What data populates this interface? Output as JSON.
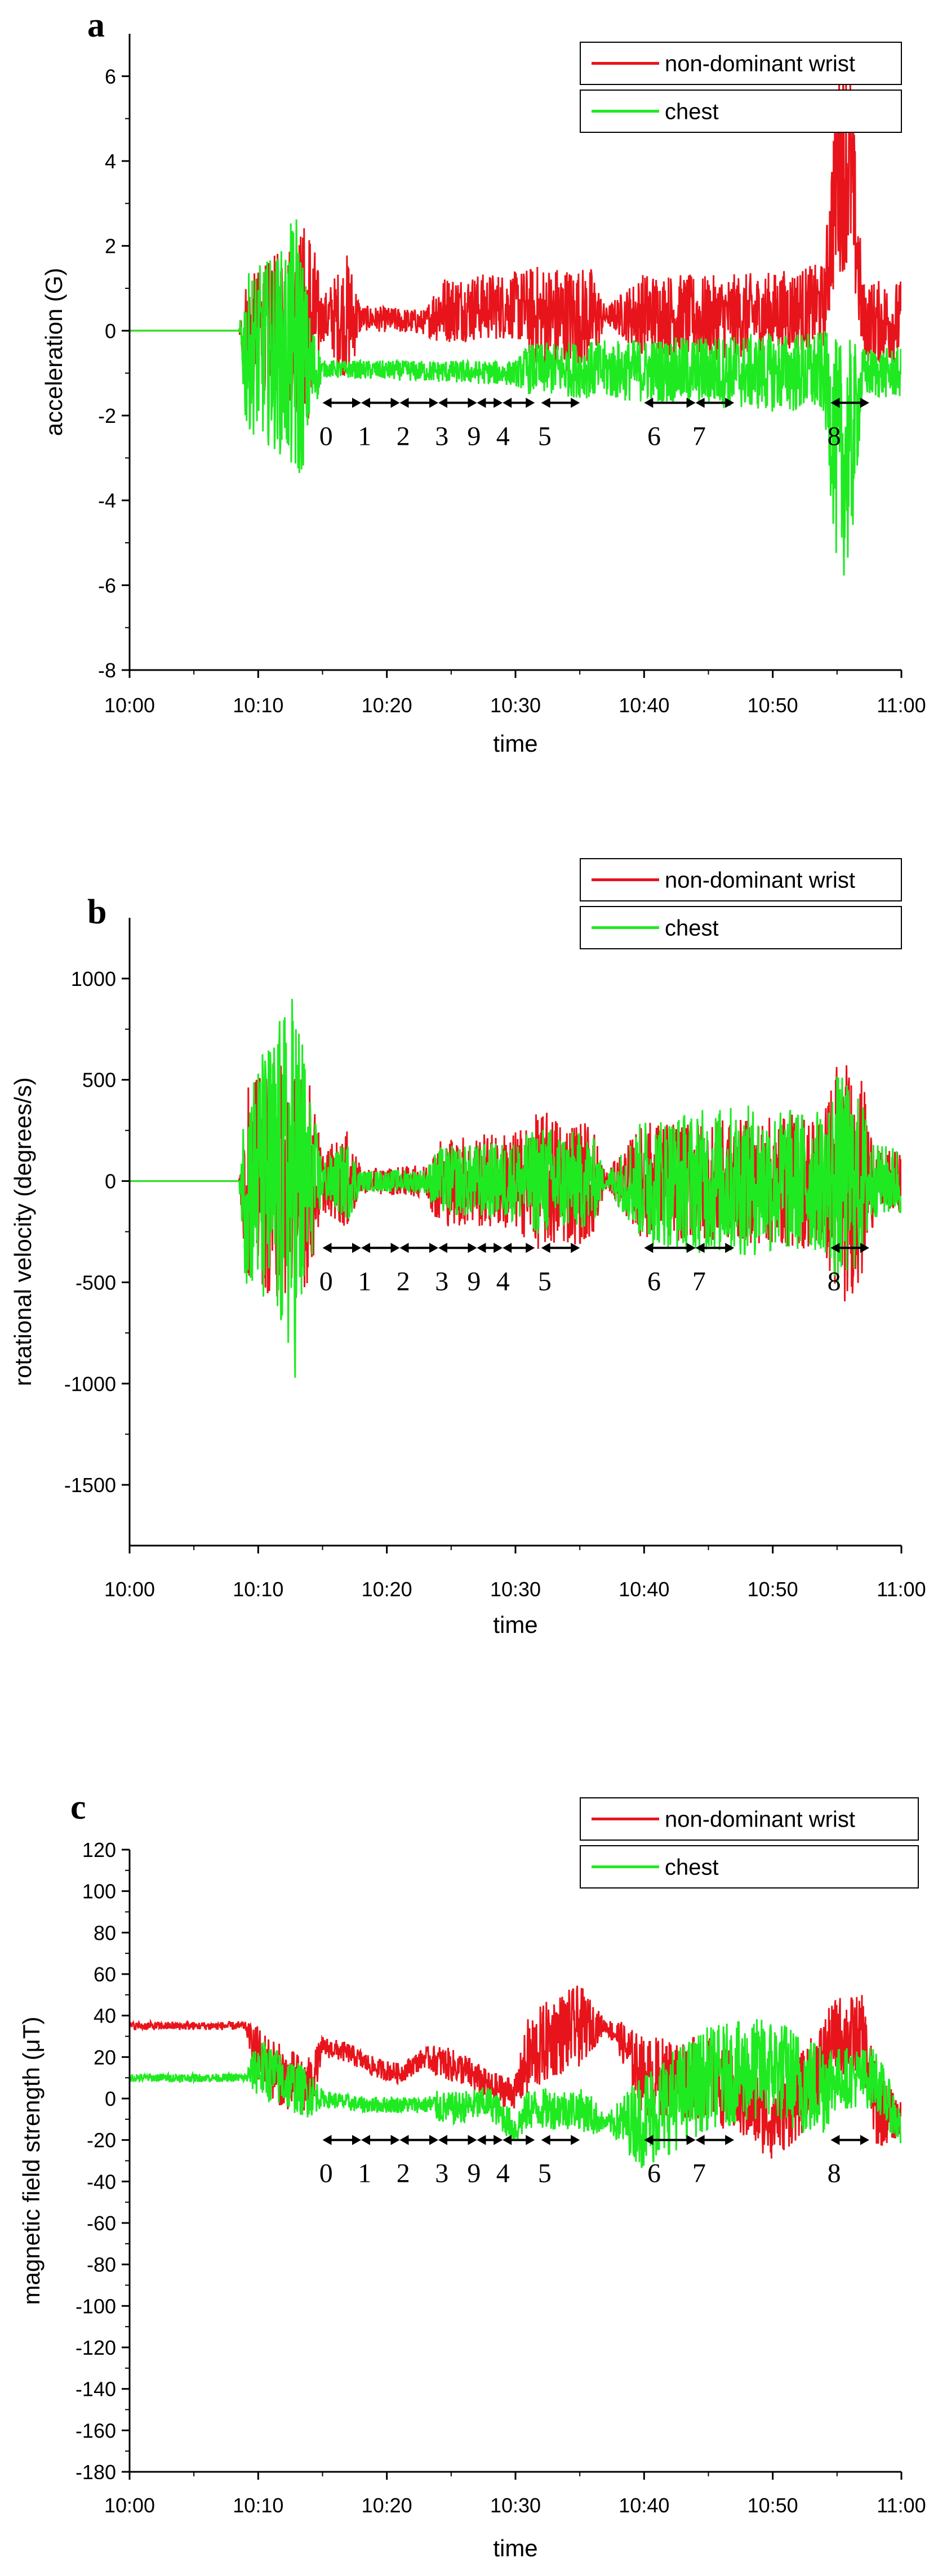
{
  "figure_title": "",
  "colors": {
    "wrist": "#e8141b",
    "chest": "#1fea21",
    "axis": "#000000",
    "arrow": "#000000"
  },
  "chart_data": [
    {
      "type": "line",
      "panel_label": "a",
      "ylabel": "acceleration (G)",
      "xlabel": "time",
      "x_ticks": [
        "10:00",
        "10:10",
        "10:20",
        "10:30",
        "10:40",
        "10:50",
        "11:00"
      ],
      "x_range_minutes": [
        0,
        60
      ],
      "y_ticks": [
        6,
        4,
        2,
        0,
        -2,
        -4,
        -6,
        -8
      ],
      "ylim": [
        -8,
        7
      ],
      "legend": {
        "placement": "top-right",
        "entries": [
          "non-dominant wrist",
          "chest"
        ]
      },
      "series": [
        {
          "name": "non-dominant wrist",
          "color": "#e8141b",
          "baseline": [
            [
              0,
              0
            ],
            [
              8.5,
              0
            ],
            [
              9,
              0
            ],
            [
              15,
              0.3
            ],
            [
              17,
              0.3
            ],
            [
              18,
              0.3
            ],
            [
              23,
              0.2
            ],
            [
              24,
              0.5
            ],
            [
              30,
              0.6
            ],
            [
              32,
              0.3
            ],
            [
              35,
              0.3
            ],
            [
              40,
              0.4
            ],
            [
              45,
              0.3
            ],
            [
              50,
              0.4
            ],
            [
              54,
              0.6
            ],
            [
              55,
              3.8
            ],
            [
              56,
              4
            ],
            [
              57,
              0.2
            ],
            [
              60,
              0.2
            ]
          ],
          "spread": [
            [
              0,
              0
            ],
            [
              8.5,
              0
            ],
            [
              9,
              1.2
            ],
            [
              11,
              1.6
            ],
            [
              13,
              2.2
            ],
            [
              14,
              2.5
            ],
            [
              15,
              0.5
            ],
            [
              17,
              1.6
            ],
            [
              18,
              0.3
            ],
            [
              23,
              0.3
            ],
            [
              24,
              0.8
            ],
            [
              30,
              0.8
            ],
            [
              32,
              1.3
            ],
            [
              36,
              1.2
            ],
            [
              37,
              0.2
            ],
            [
              40,
              1
            ],
            [
              54,
              1
            ],
            [
              55,
              2.5
            ],
            [
              56,
              2.5
            ],
            [
              57,
              1
            ],
            [
              60,
              1
            ]
          ]
        },
        {
          "name": "chest",
          "color": "#1fea21",
          "baseline": [
            [
              0,
              0
            ],
            [
              8.5,
              0
            ],
            [
              9,
              -0.5
            ],
            [
              13,
              -0.5
            ],
            [
              14,
              -1
            ],
            [
              15,
              -0.9
            ],
            [
              30,
              -1
            ],
            [
              31,
              -0.9
            ],
            [
              54,
              -1
            ],
            [
              55,
              -3
            ],
            [
              56,
              -3
            ],
            [
              57,
              -1
            ],
            [
              60,
              -1
            ]
          ],
          "spread": [
            [
              0,
              0
            ],
            [
              8.5,
              0
            ],
            [
              9,
              1.8
            ],
            [
              12,
              2.5
            ],
            [
              13,
              3.5
            ],
            [
              14,
              1.5
            ],
            [
              15,
              0.2
            ],
            [
              30,
              0.3
            ],
            [
              31,
              0.6
            ],
            [
              54,
              1
            ],
            [
              55,
              2.8
            ],
            [
              56,
              2.8
            ],
            [
              57,
              0.6
            ],
            [
              60,
              0.6
            ]
          ]
        }
      ],
      "activity_markers": [
        {
          "label": "0",
          "start": 15,
          "end": 18
        },
        {
          "label": "1",
          "start": 18,
          "end": 21
        },
        {
          "label": "2",
          "start": 21,
          "end": 24
        },
        {
          "label": "3",
          "start": 24,
          "end": 27
        },
        {
          "label": "9",
          "start": 27,
          "end": 29
        },
        {
          "label": "4",
          "start": 29,
          "end": 31.5
        },
        {
          "label": "5",
          "start": 32,
          "end": 35
        },
        {
          "label": "6",
          "start": 40,
          "end": 44
        },
        {
          "label": "7",
          "start": 44,
          "end": 47
        },
        {
          "label": "8",
          "start": 54.5,
          "end": 57.5
        }
      ],
      "marker_y": -1.7
    },
    {
      "type": "line",
      "panel_label": "b",
      "ylabel": "rotational velocity (degrees/s)",
      "xlabel": "time",
      "x_ticks": [
        "10:00",
        "10:10",
        "10:20",
        "10:30",
        "10:40",
        "10:50",
        "11:00"
      ],
      "x_range_minutes": [
        0,
        60
      ],
      "y_ticks": [
        1000,
        500,
        0,
        -500,
        -1000,
        -1500
      ],
      "ylim": [
        -1800,
        1300
      ],
      "legend": {
        "placement": "top-right",
        "entries": [
          "non-dominant wrist",
          "chest"
        ]
      },
      "series": [
        {
          "name": "non-dominant wrist",
          "color": "#e8141b",
          "baseline": [
            [
              0,
              0
            ],
            [
              60,
              0
            ]
          ],
          "spread": [
            [
              0,
              0
            ],
            [
              8.5,
              0
            ],
            [
              9,
              450
            ],
            [
              12,
              650
            ],
            [
              14,
              500
            ],
            [
              15,
              150
            ],
            [
              17,
              250
            ],
            [
              18,
              60
            ],
            [
              23,
              80
            ],
            [
              24,
              220
            ],
            [
              30,
              250
            ],
            [
              32,
              350
            ],
            [
              36,
              300
            ],
            [
              37,
              40
            ],
            [
              40,
              300
            ],
            [
              47,
              300
            ],
            [
              54,
              350
            ],
            [
              55,
              650
            ],
            [
              57,
              500
            ],
            [
              58,
              150
            ],
            [
              60,
              150
            ]
          ]
        },
        {
          "name": "chest",
          "color": "#1fea21",
          "baseline": [
            [
              0,
              0
            ],
            [
              60,
              0
            ]
          ],
          "spread": [
            [
              0,
              0
            ],
            [
              8.5,
              0
            ],
            [
              9,
              500
            ],
            [
              12,
              850
            ],
            [
              13,
              1000
            ],
            [
              14,
              450
            ],
            [
              15,
              100
            ],
            [
              17,
              200
            ],
            [
              18,
              50
            ],
            [
              23,
              60
            ],
            [
              24,
              170
            ],
            [
              30,
              200
            ],
            [
              32,
              280
            ],
            [
              36,
              230
            ],
            [
              37,
              30
            ],
            [
              40,
              320
            ],
            [
              47,
              380
            ],
            [
              54,
              350
            ],
            [
              55,
              550
            ],
            [
              57,
              400
            ],
            [
              58,
              180
            ],
            [
              60,
              180
            ]
          ]
        }
      ],
      "activity_markers": [
        {
          "label": "0",
          "start": 15,
          "end": 18
        },
        {
          "label": "1",
          "start": 18,
          "end": 21
        },
        {
          "label": "2",
          "start": 21,
          "end": 24
        },
        {
          "label": "3",
          "start": 24,
          "end": 27
        },
        {
          "label": "9",
          "start": 27,
          "end": 29
        },
        {
          "label": "4",
          "start": 29,
          "end": 31.5
        },
        {
          "label": "5",
          "start": 32,
          "end": 35
        },
        {
          "label": "6",
          "start": 40,
          "end": 44
        },
        {
          "label": "7",
          "start": 44,
          "end": 47
        },
        {
          "label": "8",
          "start": 54.5,
          "end": 57.5
        }
      ],
      "marker_y": -330
    },
    {
      "type": "line",
      "panel_label": "c",
      "ylabel": "magnetic field strength (μT)",
      "xlabel": "time",
      "x_ticks": [
        "10:00",
        "10:10",
        "10:20",
        "10:30",
        "10:40",
        "10:50",
        "11:00"
      ],
      "x_range_minutes": [
        0,
        60
      ],
      "y_ticks": [
        120,
        100,
        80,
        60,
        40,
        20,
        0,
        -20,
        -40,
        -60,
        -80,
        -100,
        -120,
        -140,
        -160,
        -180
      ],
      "ylim": [
        -180,
        120
      ],
      "legend": {
        "placement": "top-right",
        "entries": [
          "non-dominant wrist",
          "chest"
        ]
      },
      "series": [
        {
          "name": "non-dominant wrist",
          "color": "#e8141b",
          "baseline": [
            [
              0,
              35
            ],
            [
              9,
              35
            ],
            [
              10,
              20
            ],
            [
              12,
              10
            ],
            [
              14,
              5
            ],
            [
              15,
              25
            ],
            [
              17,
              22
            ],
            [
              19,
              15
            ],
            [
              21,
              12
            ],
            [
              23,
              20
            ],
            [
              26,
              14
            ],
            [
              28,
              5
            ],
            [
              30,
              3
            ],
            [
              31,
              20
            ],
            [
              33,
              30
            ],
            [
              35,
              35
            ],
            [
              37,
              35
            ],
            [
              38,
              30
            ],
            [
              40,
              10
            ],
            [
              45,
              10
            ],
            [
              50,
              -10
            ],
            [
              52,
              0
            ],
            [
              55,
              30
            ],
            [
              57,
              30
            ],
            [
              58,
              -5
            ],
            [
              60,
              -10
            ]
          ],
          "spread": [
            [
              0,
              2
            ],
            [
              9,
              2
            ],
            [
              10,
              15
            ],
            [
              14,
              15
            ],
            [
              15,
              5
            ],
            [
              23,
              5
            ],
            [
              24,
              8
            ],
            [
              30,
              8
            ],
            [
              31,
              20
            ],
            [
              35,
              20
            ],
            [
              37,
              3
            ],
            [
              38,
              8
            ],
            [
              40,
              20
            ],
            [
              58,
              20
            ],
            [
              60,
              8
            ]
          ]
        },
        {
          "name": "chest",
          "color": "#1fea21",
          "baseline": [
            [
              0,
              10
            ],
            [
              9,
              10
            ],
            [
              10,
              15
            ],
            [
              13,
              5
            ],
            [
              15,
              0
            ],
            [
              18,
              -3
            ],
            [
              23,
              -3
            ],
            [
              25,
              -5
            ],
            [
              28,
              -2
            ],
            [
              30,
              -15
            ],
            [
              31,
              -5
            ],
            [
              35,
              -5
            ],
            [
              37,
              -12
            ],
            [
              40,
              -10
            ],
            [
              45,
              10
            ],
            [
              50,
              15
            ],
            [
              53,
              5
            ],
            [
              55,
              10
            ],
            [
              57,
              10
            ],
            [
              58,
              10
            ],
            [
              60,
              -15
            ]
          ],
          "spread": [
            [
              0,
              2
            ],
            [
              9,
              2
            ],
            [
              10,
              15
            ],
            [
              14,
              12
            ],
            [
              15,
              4
            ],
            [
              23,
              4
            ],
            [
              24,
              8
            ],
            [
              30,
              8
            ],
            [
              31,
              10
            ],
            [
              36,
              10
            ],
            [
              37,
              3
            ],
            [
              40,
              25
            ],
            [
              54,
              25
            ],
            [
              55,
              15
            ],
            [
              58,
              15
            ],
            [
              60,
              10
            ]
          ]
        }
      ],
      "activity_markers": [
        {
          "label": "0",
          "start": 15,
          "end": 18
        },
        {
          "label": "1",
          "start": 18,
          "end": 21
        },
        {
          "label": "2",
          "start": 21,
          "end": 24
        },
        {
          "label": "3",
          "start": 24,
          "end": 27
        },
        {
          "label": "9",
          "start": 27,
          "end": 29
        },
        {
          "label": "4",
          "start": 29,
          "end": 31.5
        },
        {
          "label": "5",
          "start": 32,
          "end": 35
        },
        {
          "label": "6",
          "start": 40,
          "end": 44
        },
        {
          "label": "7",
          "start": 44,
          "end": 47
        },
        {
          "label": "8",
          "start": 54.5,
          "end": 57.5
        }
      ],
      "marker_y": -20
    }
  ]
}
